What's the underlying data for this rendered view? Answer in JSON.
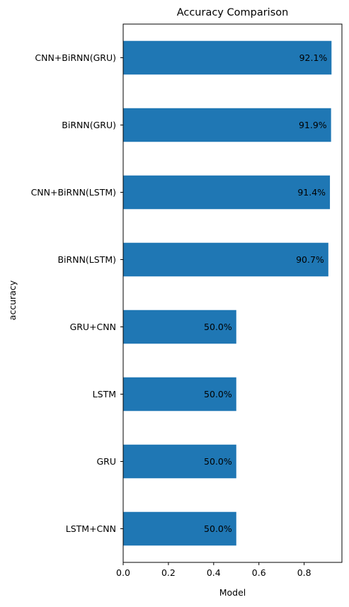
{
  "chart_data": {
    "type": "bar",
    "orientation": "horizontal",
    "title": "Accuracy Comparison",
    "xlabel": "Model",
    "ylabel": "accuracy",
    "categories": [
      "LSTM+CNN",
      "GRU",
      "LSTM",
      "GRU+CNN",
      "BiRNN(LSTM)",
      "CNN+BiRNN(LSTM)",
      "BiRNN(GRU)",
      "CNN+BiRNN(GRU)"
    ],
    "values": [
      0.5,
      0.5,
      0.5,
      0.5,
      0.907,
      0.914,
      0.919,
      0.921
    ],
    "value_labels": [
      "50.0%",
      "50.0%",
      "50.0%",
      "50.0%",
      "90.7%",
      "91.4%",
      "91.9%",
      "92.1%"
    ],
    "xlim": [
      0,
      0.967
    ],
    "xticks": [
      0.0,
      0.2,
      0.4,
      0.6,
      0.8
    ],
    "xtick_labels": [
      "0.0",
      "0.2",
      "0.4",
      "0.6",
      "0.8"
    ],
    "grid": false,
    "legend": "none",
    "bar_color": "#1f77b4"
  }
}
